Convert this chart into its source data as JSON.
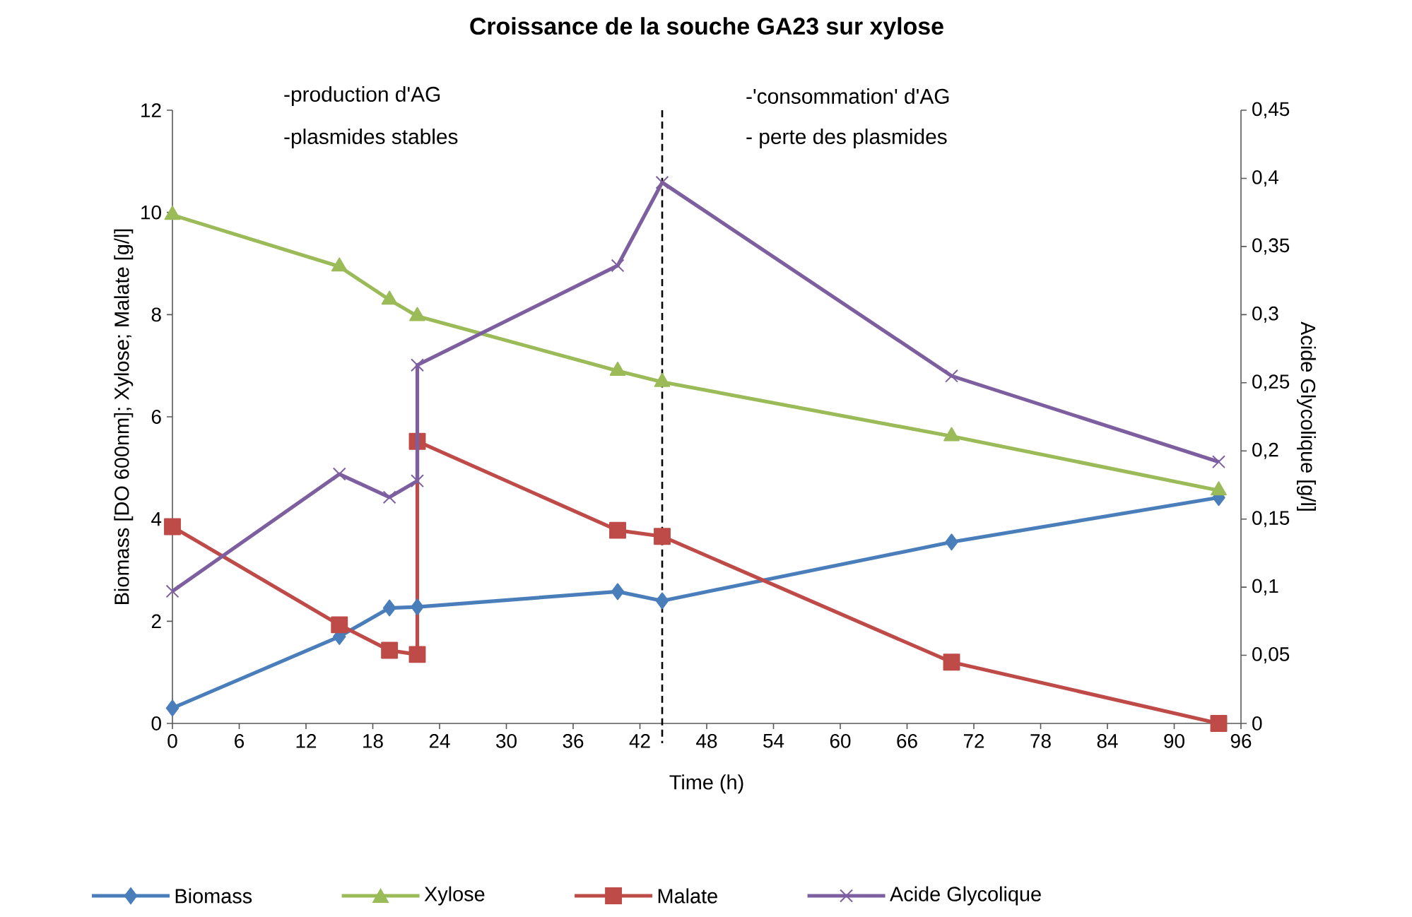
{
  "chart_data": {
    "type": "line",
    "title": "Croissance de la souche GA23 sur xylose",
    "xlabel": "Time (h)",
    "ylabel": "Biomass [DO 600nm]; Xylose; Malate [g/l]",
    "y2label": "Acide Glycolique [g/l]",
    "xlim": [
      0,
      96
    ],
    "xticks": [
      0,
      6,
      12,
      18,
      24,
      30,
      36,
      42,
      48,
      54,
      60,
      66,
      72,
      78,
      84,
      90,
      96
    ],
    "ylim": [
      0,
      12
    ],
    "yticks": [
      0,
      2,
      4,
      6,
      8,
      10,
      12
    ],
    "y2lim": [
      0,
      0.45
    ],
    "y2ticks": [
      0,
      {
        "value": 0.05,
        "label": "0,05"
      },
      {
        "value": 0.1,
        "label": "0,1"
      },
      {
        "value": 0.15,
        "label": "0,15"
      },
      {
        "value": 0.2,
        "label": "0,2"
      },
      {
        "value": 0.25,
        "label": "0,25"
      },
      {
        "value": 0.3,
        "label": "0,3"
      },
      {
        "value": 0.35,
        "label": "0,35"
      },
      {
        "value": 0.4,
        "label": "0,4"
      },
      {
        "value": 0.45,
        "label": "0,45"
      }
    ],
    "series": [
      {
        "name": "Biomass",
        "color": "#4a7ebb",
        "marker": "diamond",
        "x": [
          0,
          15,
          19.5,
          22,
          40,
          44,
          70,
          94
        ],
        "values": [
          0.3,
          1.7,
          2.26,
          2.28,
          2.58,
          2.4,
          3.55,
          4.42
        ]
      },
      {
        "name": "Xylose",
        "color": "#9bbb59",
        "marker": "triangle",
        "x": [
          0,
          15,
          19.5,
          22,
          40,
          44,
          70,
          94
        ],
        "values": [
          9.95,
          8.94,
          8.29,
          7.97,
          6.9,
          6.68,
          5.62,
          4.56
        ]
      },
      {
        "name": "Malate",
        "color": "#be4b48",
        "marker": "square",
        "x": [
          0,
          15,
          19.5,
          22,
          22,
          40,
          44,
          70,
          94
        ],
        "values": [
          3.85,
          1.93,
          1.43,
          1.35,
          5.52,
          3.78,
          3.66,
          1.2,
          0
        ]
      },
      {
        "name": "Acide Glycolique",
        "color": "#7d5fa0",
        "marker": "cross",
        "axis": "y2",
        "x": [
          0,
          15,
          19.5,
          22,
          22,
          40,
          44,
          70,
          94
        ],
        "values": [
          0.097,
          0.183,
          0.166,
          0.178,
          0.263,
          0.336,
          0.397,
          0.255,
          0.192
        ]
      }
    ],
    "ref_lines": [
      {
        "axis": "x",
        "value": 44,
        "color": "#000000",
        "line_style": "dashed"
      }
    ],
    "annotations": [
      "-production d'AG",
      "-plasmides stables",
      "-'consommation' d'AG",
      "- perte des plasmides"
    ],
    "legend": "bottom",
    "grid": false
  }
}
